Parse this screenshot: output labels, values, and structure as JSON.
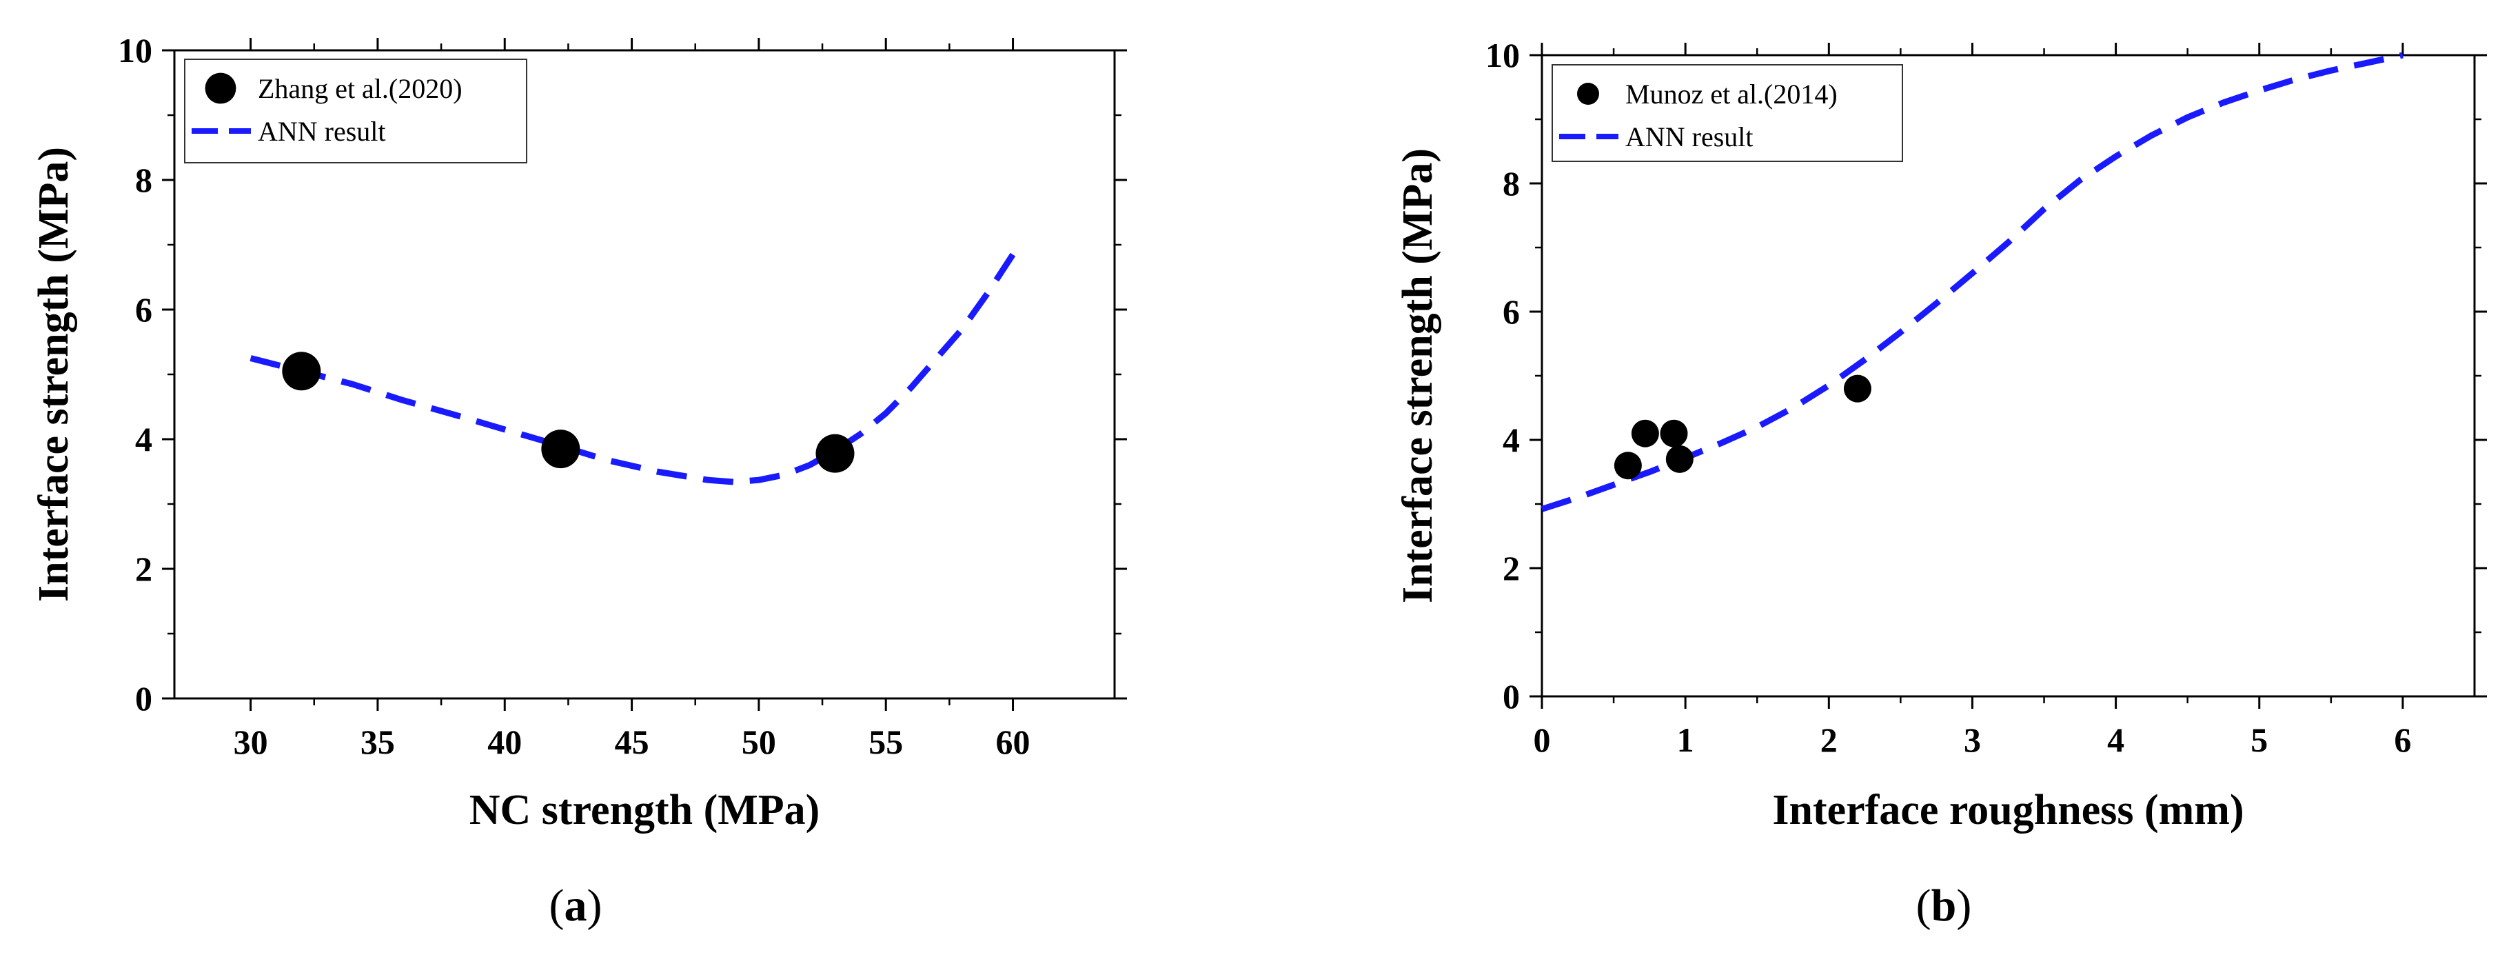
{
  "chart_data": [
    {
      "type": "scatter",
      "panel_label": "a",
      "xlabel": "NC strength (MPa)",
      "ylabel": "Interface strength (MPa)",
      "xlim": [
        27,
        64
      ],
      "ylim": [
        0,
        10
      ],
      "xticks": [
        30,
        35,
        40,
        45,
        50,
        55,
        60
      ],
      "yticks": [
        0,
        2,
        4,
        6,
        8,
        10
      ],
      "legend_position": "top-left",
      "series": [
        {
          "name": "Zhang et al.(2020)",
          "kind": "scatter",
          "marker": "filled-circle",
          "marker_size": "large",
          "color": "#000000",
          "points": [
            {
              "x": 32.0,
              "y": 5.05
            },
            {
              "x": 42.2,
              "y": 3.85
            },
            {
              "x": 53.0,
              "y": 3.78
            }
          ]
        },
        {
          "name": "ANN result",
          "kind": "line",
          "style": "dashed",
          "color": "#1a1aff",
          "points": [
            {
              "x": 30,
              "y": 5.25
            },
            {
              "x": 32,
              "y": 5.05
            },
            {
              "x": 34,
              "y": 4.85
            },
            {
              "x": 36,
              "y": 4.6
            },
            {
              "x": 38,
              "y": 4.38
            },
            {
              "x": 40,
              "y": 4.15
            },
            {
              "x": 42,
              "y": 3.92
            },
            {
              "x": 44,
              "y": 3.68
            },
            {
              "x": 46,
              "y": 3.5
            },
            {
              "x": 48,
              "y": 3.37
            },
            {
              "x": 49,
              "y": 3.34
            },
            {
              "x": 50,
              "y": 3.37
            },
            {
              "x": 51,
              "y": 3.45
            },
            {
              "x": 52,
              "y": 3.6
            },
            {
              "x": 53,
              "y": 3.82
            },
            {
              "x": 54,
              "y": 4.08
            },
            {
              "x": 55,
              "y": 4.4
            },
            {
              "x": 56,
              "y": 4.8
            },
            {
              "x": 57,
              "y": 5.25
            },
            {
              "x": 58,
              "y": 5.7
            },
            {
              "x": 59,
              "y": 6.25
            },
            {
              "x": 60,
              "y": 6.85
            }
          ]
        }
      ]
    },
    {
      "type": "scatter",
      "panel_label": "b",
      "xlabel": "Interface roughness (mm)",
      "ylabel": "Interface strength (MPa)",
      "xlim": [
        0,
        6.5
      ],
      "ylim": [
        0,
        10
      ],
      "xticks": [
        0,
        1,
        2,
        3,
        4,
        5,
        6
      ],
      "yticks": [
        0,
        2,
        4,
        6,
        8,
        10
      ],
      "legend_position": "top-left",
      "series": [
        {
          "name": "Munoz et al.(2014)",
          "kind": "scatter",
          "marker": "filled-circle",
          "marker_size": "medium",
          "color": "#000000",
          "points": [
            {
              "x": 0.6,
              "y": 3.6
            },
            {
              "x": 0.72,
              "y": 4.1
            },
            {
              "x": 0.92,
              "y": 4.1
            },
            {
              "x": 0.96,
              "y": 3.7
            },
            {
              "x": 2.2,
              "y": 4.8
            }
          ]
        },
        {
          "name": "ANN result",
          "kind": "line",
          "style": "dashed",
          "color": "#1a1aff",
          "points": [
            {
              "x": 0.0,
              "y": 2.92
            },
            {
              "x": 0.25,
              "y": 3.1
            },
            {
              "x": 0.5,
              "y": 3.3
            },
            {
              "x": 0.75,
              "y": 3.5
            },
            {
              "x": 1.0,
              "y": 3.72
            },
            {
              "x": 1.25,
              "y": 3.95
            },
            {
              "x": 1.5,
              "y": 4.2
            },
            {
              "x": 1.75,
              "y": 4.5
            },
            {
              "x": 2.0,
              "y": 4.85
            },
            {
              "x": 2.25,
              "y": 5.25
            },
            {
              "x": 2.5,
              "y": 5.68
            },
            {
              "x": 2.75,
              "y": 6.13
            },
            {
              "x": 3.0,
              "y": 6.6
            },
            {
              "x": 3.25,
              "y": 7.08
            },
            {
              "x": 3.5,
              "y": 7.6
            },
            {
              "x": 3.75,
              "y": 8.05
            },
            {
              "x": 4.0,
              "y": 8.42
            },
            {
              "x": 4.25,
              "y": 8.75
            },
            {
              "x": 4.5,
              "y": 9.03
            },
            {
              "x": 4.75,
              "y": 9.26
            },
            {
              "x": 5.0,
              "y": 9.45
            },
            {
              "x": 5.25,
              "y": 9.62
            },
            {
              "x": 5.5,
              "y": 9.76
            },
            {
              "x": 5.75,
              "y": 9.88
            },
            {
              "x": 6.0,
              "y": 10.0
            }
          ]
        }
      ]
    }
  ],
  "colors": {
    "ann_line": "#1a1aff",
    "markers": "#000000",
    "axes": "#000000"
  }
}
